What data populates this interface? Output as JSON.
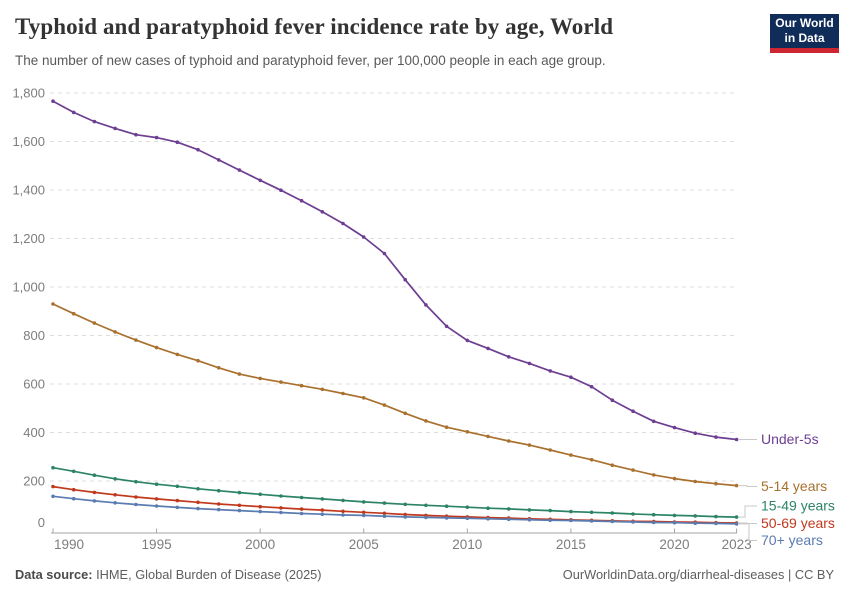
{
  "header": {
    "title": "Typhoid and paratyphoid fever incidence rate by age, World",
    "subtitle": "The number of new cases of typhoid and paratyphoid fever, per 100,000 people in each age group.",
    "logo": {
      "line1": "Our World",
      "line2": "in Data",
      "bg_color": "#102D59",
      "accent_color": "#CE2631"
    }
  },
  "chart_data": {
    "type": "line",
    "title": "Typhoid and paratyphoid fever incidence rate by age, World",
    "xlabel": "",
    "ylabel": "",
    "ylim": [
      0,
      1800
    ],
    "grid": "horizontal-dashed",
    "legend_position": "right",
    "x": [
      1990,
      1991,
      1992,
      1993,
      1994,
      1995,
      1996,
      1997,
      1998,
      1999,
      2000,
      2001,
      2002,
      2003,
      2004,
      2005,
      2006,
      2007,
      2008,
      2009,
      2010,
      2011,
      2012,
      2013,
      2014,
      2015,
      2016,
      2017,
      2018,
      2019,
      2020,
      2021,
      2022,
      2023
    ],
    "xticks": [
      1990,
      1995,
      2000,
      2005,
      2010,
      2015,
      2020,
      2023
    ],
    "yticks": [
      {
        "v": 0,
        "t": "0"
      },
      {
        "v": 200,
        "t": "200"
      },
      {
        "v": 400,
        "t": "400"
      },
      {
        "v": 600,
        "t": "600"
      },
      {
        "v": 800,
        "t": "800"
      },
      {
        "v": 1000,
        "t": "1,000"
      },
      {
        "v": 1200,
        "t": "1,200"
      },
      {
        "v": 1400,
        "t": "1,400"
      },
      {
        "v": 1600,
        "t": "1,600"
      },
      {
        "v": 1800,
        "t": "1,800"
      }
    ],
    "series": [
      {
        "name": "Under-5s",
        "color": "#6D3E91",
        "values": [
          1766,
          1720,
          1682,
          1654,
          1628,
          1616,
          1597,
          1566,
          1524,
          1482,
          1440,
          1399,
          1356,
          1310,
          1262,
          1206,
          1138,
          1030,
          926,
          838,
          780,
          747,
          712,
          685,
          654,
          628,
          589,
          533,
          488,
          446,
          420,
          397,
          381,
          371
        ]
      },
      {
        "name": "5-14 years",
        "color": "#A9702E",
        "values": [
          930,
          890,
          851,
          815,
          781,
          750,
          722,
          696,
          667,
          641,
          623,
          608,
          593,
          578,
          561,
          543,
          513,
          479,
          448,
          422,
          403,
          384,
          365,
          348,
          328,
          307,
          288,
          265,
          245,
          225,
          210,
          198,
          189,
          181
        ]
      },
      {
        "name": "15-49 years",
        "color": "#2C8465",
        "values": [
          255,
          240,
          224,
          209,
          197,
          187,
          178,
          168,
          160,
          152,
          145,
          138,
          132,
          126,
          120,
          114,
          109,
          104,
          100,
          96,
          92,
          88,
          85,
          81,
          78,
          74,
          71,
          68,
          64,
          61,
          58,
          56,
          53,
          51
        ]
      },
      {
        "name": "50-69 years",
        "color": "#C1391D",
        "values": [
          177,
          164,
          153,
          143,
          134,
          126,
          119,
          112,
          105,
          100,
          94,
          89,
          84,
          80,
          75,
          71,
          67,
          62,
          58,
          55,
          52,
          49,
          47,
          44,
          42,
          40,
          38,
          36,
          34,
          33,
          31,
          30,
          28,
          27
        ]
      },
      {
        "name": "70+ years",
        "color": "#5B7CB0",
        "values": [
          137,
          127,
          118,
          110,
          103,
          97,
          91,
          86,
          82,
          78,
          74,
          70,
          66,
          63,
          60,
          58,
          55,
          52,
          50,
          48,
          46,
          44,
          42,
          40,
          38,
          37,
          35,
          33,
          31,
          29,
          28,
          26,
          25,
          23
        ]
      }
    ]
  },
  "footer": {
    "source_label": "Data source:",
    "source_text": " IHME, Global Burden of Disease (2025)",
    "link_text": "OurWorldinData.org/diarrheal-diseases",
    "separator": " | ",
    "license_text": "CC BY"
  }
}
